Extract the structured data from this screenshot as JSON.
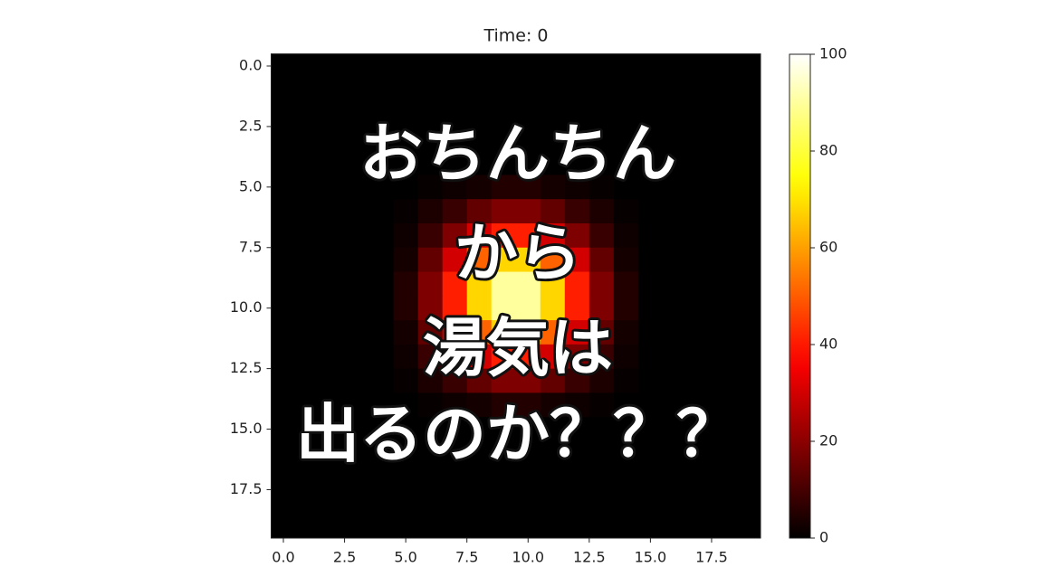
{
  "chart_data": {
    "type": "heatmap",
    "title": "Time: 0",
    "overlay_text": [
      "おちんちん",
      "から",
      "湯気は",
      "出るのか？？？"
    ],
    "colormap": "hot",
    "xlim": [
      -0.5,
      19.5
    ],
    "ylim": [
      19.5,
      -0.5
    ],
    "xticks": [
      {
        "value": 0,
        "label": "0.0"
      },
      2.5,
      {
        "value": 5,
        "label": "5.0"
      },
      7.5,
      {
        "value": 10,
        "label": "10.0"
      },
      12.5,
      {
        "value": 15,
        "label": "15.0"
      },
      17.5
    ],
    "yticks": [
      {
        "value": 0,
        "label": "0.0"
      },
      2.5,
      {
        "value": 5,
        "label": "5.0"
      },
      7.5,
      {
        "value": 10,
        "label": "10.0"
      },
      12.5,
      {
        "value": 15,
        "label": "15.0"
      },
      17.5
    ],
    "colorbar_lim": [
      0,
      100
    ],
    "colorbar_ticks": [
      0,
      20,
      40,
      60,
      80,
      100
    ],
    "z": [
      [
        0,
        0,
        0,
        0,
        0,
        0,
        0,
        0,
        0,
        0,
        0,
        0,
        0,
        0,
        0,
        0,
        0,
        0,
        0,
        0
      ],
      [
        0,
        0,
        0,
        0,
        0,
        0,
        0,
        0,
        0,
        0,
        0,
        0,
        0,
        0,
        0,
        0,
        0,
        0,
        0,
        0
      ],
      [
        0,
        0,
        0,
        0,
        0,
        0,
        0,
        0,
        0,
        0,
        0,
        0,
        0,
        0,
        0,
        0,
        0,
        0,
        0,
        0
      ],
      [
        0,
        0,
        0,
        0,
        0,
        0,
        0,
        0,
        0,
        0,
        0,
        0,
        0,
        0,
        0,
        0,
        0,
        0,
        0,
        0
      ],
      [
        0,
        0,
        0,
        0,
        0,
        0,
        0,
        0,
        0,
        0,
        0,
        0,
        0,
        0,
        0,
        0,
        0,
        0,
        0,
        0
      ],
      [
        0,
        0,
        0,
        0,
        0,
        0,
        1,
        2,
        3,
        5,
        5,
        3,
        2,
        1,
        0,
        0,
        0,
        0,
        0,
        0
      ],
      [
        0,
        0,
        0,
        0,
        0,
        1,
        4,
        8,
        14,
        18,
        18,
        14,
        8,
        4,
        1,
        0,
        0,
        0,
        0,
        0
      ],
      [
        0,
        0,
        0,
        0,
        0,
        2,
        8,
        18,
        30,
        41,
        41,
        30,
        18,
        8,
        2,
        0,
        0,
        0,
        0,
        0
      ],
      [
        0,
        0,
        0,
        0,
        0,
        3,
        14,
        30,
        51,
        68,
        68,
        51,
        30,
        14,
        3,
        0,
        0,
        0,
        0,
        0
      ],
      [
        0,
        0,
        0,
        0,
        0,
        5,
        18,
        41,
        68,
        90,
        90,
        68,
        41,
        18,
        5,
        0,
        0,
        0,
        0,
        0
      ],
      [
        0,
        0,
        0,
        0,
        0,
        5,
        18,
        41,
        68,
        90,
        90,
        68,
        41,
        18,
        5,
        0,
        0,
        0,
        0,
        0
      ],
      [
        0,
        0,
        0,
        0,
        0,
        3,
        14,
        30,
        51,
        68,
        68,
        51,
        30,
        14,
        3,
        0,
        0,
        0,
        0,
        0
      ],
      [
        0,
        0,
        0,
        0,
        0,
        2,
        8,
        18,
        30,
        41,
        41,
        30,
        18,
        8,
        2,
        0,
        0,
        0,
        0,
        0
      ],
      [
        0,
        0,
        0,
        0,
        0,
        1,
        4,
        8,
        14,
        18,
        18,
        14,
        8,
        4,
        1,
        0,
        0,
        0,
        0,
        0
      ],
      [
        0,
        0,
        0,
        0,
        0,
        0,
        1,
        2,
        3,
        5,
        5,
        3,
        2,
        1,
        0,
        0,
        0,
        0,
        0,
        0
      ],
      [
        0,
        0,
        0,
        0,
        0,
        0,
        0,
        0,
        0,
        0,
        0,
        0,
        0,
        0,
        0,
        0,
        0,
        0,
        0,
        0
      ],
      [
        0,
        0,
        0,
        0,
        0,
        0,
        0,
        0,
        0,
        0,
        0,
        0,
        0,
        0,
        0,
        0,
        0,
        0,
        0,
        0
      ],
      [
        0,
        0,
        0,
        0,
        0,
        0,
        0,
        0,
        0,
        0,
        0,
        0,
        0,
        0,
        0,
        0,
        0,
        0,
        0,
        0
      ],
      [
        0,
        0,
        0,
        0,
        0,
        0,
        0,
        0,
        0,
        0,
        0,
        0,
        0,
        0,
        0,
        0,
        0,
        0,
        0,
        0
      ],
      [
        0,
        0,
        0,
        0,
        0,
        0,
        0,
        0,
        0,
        0,
        0,
        0,
        0,
        0,
        0,
        0,
        0,
        0,
        0,
        0
      ]
    ]
  }
}
